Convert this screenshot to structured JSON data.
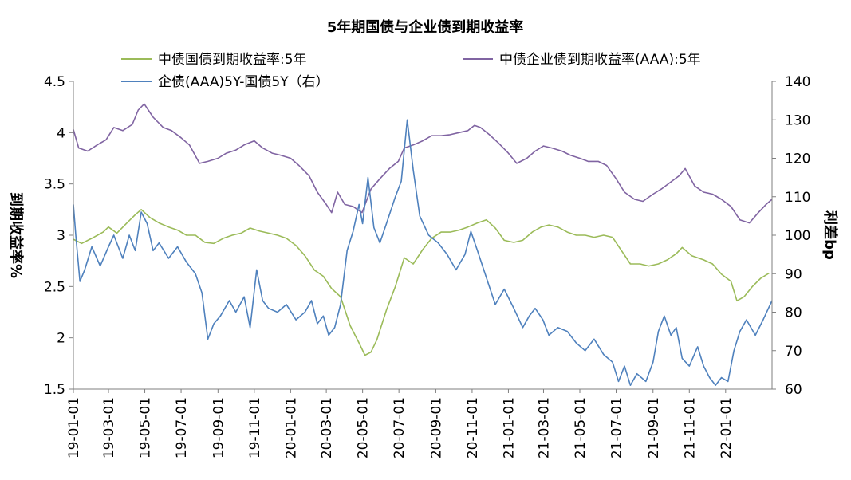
{
  "colors": {
    "gov": "#9BBB59",
    "corp": "#8064A2",
    "spread": "#4F81BD",
    "axis": "#7F7F7F"
  },
  "chart_data": {
    "type": "line",
    "title": "5年期国债与企业债到期收益率",
    "ylabel_left": "到期收益率%",
    "ylabel_right": "利差bp",
    "ylim_left": [
      1.5,
      4.5
    ],
    "yticks_left": [
      "1.5",
      "2",
      "2.5",
      "3",
      "3.5",
      "4",
      "4.5"
    ],
    "ylim_right": [
      60,
      140
    ],
    "yticks_right": [
      "60",
      "70",
      "80",
      "90",
      "100",
      "110",
      "120",
      "130",
      "140"
    ],
    "x_range": [
      "2019-01-01",
      "2022-03-20"
    ],
    "x_ticks": [
      "19-01-01",
      "19-03-01",
      "19-05-01",
      "19-07-01",
      "19-09-01",
      "19-11-01",
      "20-01-01",
      "20-03-01",
      "20-05-01",
      "20-07-01",
      "20-09-01",
      "20-11-01",
      "21-01-01",
      "21-03-01",
      "21-05-01",
      "21-07-01",
      "21-09-01",
      "21-11-01",
      "22-01-01"
    ],
    "legend_position": "top",
    "grid": false,
    "series": [
      {
        "name": "中债国债到期收益率:5年",
        "axis": "left",
        "color": "#9BBB59",
        "points": [
          [
            "2019-01-01",
            2.96
          ],
          [
            "2019-01-15",
            2.92
          ],
          [
            "2019-02-01",
            2.97
          ],
          [
            "2019-02-20",
            3.03
          ],
          [
            "2019-03-01",
            3.08
          ],
          [
            "2019-03-15",
            3.02
          ],
          [
            "2019-04-01",
            3.12
          ],
          [
            "2019-04-15",
            3.2
          ],
          [
            "2019-04-25",
            3.25
          ],
          [
            "2019-05-10",
            3.17
          ],
          [
            "2019-05-25",
            3.12
          ],
          [
            "2019-06-10",
            3.08
          ],
          [
            "2019-06-25",
            3.05
          ],
          [
            "2019-07-10",
            3.0
          ],
          [
            "2019-07-25",
            3.0
          ],
          [
            "2019-08-10",
            2.93
          ],
          [
            "2019-08-25",
            2.92
          ],
          [
            "2019-09-10",
            2.97
          ],
          [
            "2019-09-25",
            3.0
          ],
          [
            "2019-10-10",
            3.02
          ],
          [
            "2019-10-25",
            3.07
          ],
          [
            "2019-11-10",
            3.04
          ],
          [
            "2019-11-25",
            3.02
          ],
          [
            "2019-12-10",
            3.0
          ],
          [
            "2019-12-25",
            2.97
          ],
          [
            "2020-01-10",
            2.9
          ],
          [
            "2020-01-25",
            2.8
          ],
          [
            "2020-02-10",
            2.66
          ],
          [
            "2020-02-25",
            2.6
          ],
          [
            "2020-03-10",
            2.48
          ],
          [
            "2020-03-25",
            2.4
          ],
          [
            "2020-04-10",
            2.12
          ],
          [
            "2020-04-25",
            1.95
          ],
          [
            "2020-05-05",
            1.83
          ],
          [
            "2020-05-15",
            1.86
          ],
          [
            "2020-05-25",
            1.98
          ],
          [
            "2020-06-10",
            2.27
          ],
          [
            "2020-06-25",
            2.5
          ],
          [
            "2020-07-10",
            2.78
          ],
          [
            "2020-07-25",
            2.72
          ],
          [
            "2020-08-10",
            2.86
          ],
          [
            "2020-08-25",
            2.97
          ],
          [
            "2020-09-10",
            3.03
          ],
          [
            "2020-09-25",
            3.03
          ],
          [
            "2020-10-10",
            3.05
          ],
          [
            "2020-10-25",
            3.08
          ],
          [
            "2020-11-10",
            3.12
          ],
          [
            "2020-11-25",
            3.15
          ],
          [
            "2020-12-10",
            3.07
          ],
          [
            "2020-12-25",
            2.95
          ],
          [
            "2021-01-10",
            2.93
          ],
          [
            "2021-01-25",
            2.95
          ],
          [
            "2021-02-10",
            3.03
          ],
          [
            "2021-02-25",
            3.08
          ],
          [
            "2021-03-10",
            3.1
          ],
          [
            "2021-03-25",
            3.08
          ],
          [
            "2021-04-10",
            3.03
          ],
          [
            "2021-04-25",
            3.0
          ],
          [
            "2021-05-10",
            3.0
          ],
          [
            "2021-05-25",
            2.98
          ],
          [
            "2021-06-10",
            3.0
          ],
          [
            "2021-06-25",
            2.98
          ],
          [
            "2021-07-10",
            2.85
          ],
          [
            "2021-07-25",
            2.72
          ],
          [
            "2021-08-10",
            2.72
          ],
          [
            "2021-08-25",
            2.7
          ],
          [
            "2021-09-10",
            2.72
          ],
          [
            "2021-09-25",
            2.76
          ],
          [
            "2021-10-10",
            2.82
          ],
          [
            "2021-10-20",
            2.88
          ],
          [
            "2021-11-05",
            2.8
          ],
          [
            "2021-11-25",
            2.76
          ],
          [
            "2021-12-10",
            2.72
          ],
          [
            "2021-12-25",
            2.62
          ],
          [
            "2022-01-10",
            2.55
          ],
          [
            "2022-01-20",
            2.36
          ],
          [
            "2022-02-01",
            2.4
          ],
          [
            "2022-02-15",
            2.5
          ],
          [
            "2022-03-01",
            2.58
          ],
          [
            "2022-03-15",
            2.63
          ]
        ]
      },
      {
        "name": "中债企业债到期收益率(AAA):5年",
        "axis": "left",
        "color": "#8064A2",
        "points": [
          [
            "2019-01-01",
            4.03
          ],
          [
            "2019-01-10",
            3.85
          ],
          [
            "2019-01-25",
            3.82
          ],
          [
            "2019-02-10",
            3.88
          ],
          [
            "2019-02-25",
            3.93
          ],
          [
            "2019-03-10",
            4.05
          ],
          [
            "2019-03-25",
            4.02
          ],
          [
            "2019-04-10",
            4.08
          ],
          [
            "2019-04-20",
            4.22
          ],
          [
            "2019-04-30",
            4.28
          ],
          [
            "2019-05-15",
            4.15
          ],
          [
            "2019-06-01",
            4.05
          ],
          [
            "2019-06-15",
            4.02
          ],
          [
            "2019-07-01",
            3.95
          ],
          [
            "2019-07-15",
            3.88
          ],
          [
            "2019-08-01",
            3.7
          ],
          [
            "2019-08-15",
            3.72
          ],
          [
            "2019-09-01",
            3.75
          ],
          [
            "2019-09-15",
            3.8
          ],
          [
            "2019-10-01",
            3.83
          ],
          [
            "2019-10-15",
            3.88
          ],
          [
            "2019-11-01",
            3.92
          ],
          [
            "2019-11-15",
            3.85
          ],
          [
            "2019-12-01",
            3.8
          ],
          [
            "2019-12-15",
            3.78
          ],
          [
            "2020-01-01",
            3.75
          ],
          [
            "2020-01-15",
            3.68
          ],
          [
            "2020-02-01",
            3.58
          ],
          [
            "2020-02-15",
            3.42
          ],
          [
            "2020-03-01",
            3.3
          ],
          [
            "2020-03-10",
            3.22
          ],
          [
            "2020-03-20",
            3.42
          ],
          [
            "2020-04-01",
            3.3
          ],
          [
            "2020-04-15",
            3.28
          ],
          [
            "2020-04-30",
            3.22
          ],
          [
            "2020-05-15",
            3.45
          ],
          [
            "2020-05-30",
            3.55
          ],
          [
            "2020-06-15",
            3.65
          ],
          [
            "2020-06-30",
            3.72
          ],
          [
            "2020-07-10",
            3.85
          ],
          [
            "2020-07-25",
            3.88
          ],
          [
            "2020-08-10",
            3.92
          ],
          [
            "2020-08-25",
            3.97
          ],
          [
            "2020-09-10",
            3.97
          ],
          [
            "2020-09-25",
            3.98
          ],
          [
            "2020-10-10",
            4.0
          ],
          [
            "2020-10-25",
            4.02
          ],
          [
            "2020-11-05",
            4.07
          ],
          [
            "2020-11-15",
            4.05
          ],
          [
            "2020-11-30",
            3.98
          ],
          [
            "2020-12-15",
            3.9
          ],
          [
            "2021-01-01",
            3.8
          ],
          [
            "2021-01-15",
            3.7
          ],
          [
            "2021-02-01",
            3.75
          ],
          [
            "2021-02-15",
            3.82
          ],
          [
            "2021-03-01",
            3.87
          ],
          [
            "2021-03-15",
            3.85
          ],
          [
            "2021-04-01",
            3.82
          ],
          [
            "2021-04-15",
            3.78
          ],
          [
            "2021-05-01",
            3.75
          ],
          [
            "2021-05-15",
            3.72
          ],
          [
            "2021-06-01",
            3.72
          ],
          [
            "2021-06-15",
            3.68
          ],
          [
            "2021-07-01",
            3.55
          ],
          [
            "2021-07-15",
            3.42
          ],
          [
            "2021-08-01",
            3.35
          ],
          [
            "2021-08-15",
            3.33
          ],
          [
            "2021-09-01",
            3.4
          ],
          [
            "2021-09-15",
            3.45
          ],
          [
            "2021-10-01",
            3.52
          ],
          [
            "2021-10-15",
            3.58
          ],
          [
            "2021-10-25",
            3.65
          ],
          [
            "2021-11-10",
            3.48
          ],
          [
            "2021-11-25",
            3.42
          ],
          [
            "2021-12-10",
            3.4
          ],
          [
            "2021-12-25",
            3.35
          ],
          [
            "2022-01-10",
            3.28
          ],
          [
            "2022-01-25",
            3.15
          ],
          [
            "2022-02-10",
            3.12
          ],
          [
            "2022-02-25",
            3.22
          ],
          [
            "2022-03-10",
            3.3
          ],
          [
            "2022-03-20",
            3.35
          ]
        ]
      },
      {
        "name": "企债(AAA)5Y-国债5Y（右）",
        "axis": "right",
        "color": "#4F81BD",
        "points": [
          [
            "2019-01-01",
            108
          ],
          [
            "2019-01-05",
            100
          ],
          [
            "2019-01-12",
            88
          ],
          [
            "2019-01-20",
            91
          ],
          [
            "2019-02-01",
            97
          ],
          [
            "2019-02-15",
            92
          ],
          [
            "2019-03-01",
            97
          ],
          [
            "2019-03-10",
            100
          ],
          [
            "2019-03-25",
            94
          ],
          [
            "2019-04-05",
            100
          ],
          [
            "2019-04-15",
            96
          ],
          [
            "2019-04-25",
            106
          ],
          [
            "2019-05-05",
            103
          ],
          [
            "2019-05-15",
            96
          ],
          [
            "2019-05-25",
            98
          ],
          [
            "2019-06-10",
            94
          ],
          [
            "2019-06-25",
            97
          ],
          [
            "2019-07-10",
            93
          ],
          [
            "2019-07-25",
            90
          ],
          [
            "2019-08-05",
            85
          ],
          [
            "2019-08-15",
            73
          ],
          [
            "2019-08-25",
            77
          ],
          [
            "2019-09-05",
            79
          ],
          [
            "2019-09-20",
            83
          ],
          [
            "2019-10-01",
            80
          ],
          [
            "2019-10-15",
            84
          ],
          [
            "2019-10-25",
            76
          ],
          [
            "2019-11-05",
            91
          ],
          [
            "2019-11-15",
            83
          ],
          [
            "2019-11-25",
            81
          ],
          [
            "2019-12-10",
            80
          ],
          [
            "2019-12-25",
            82
          ],
          [
            "2020-01-10",
            78
          ],
          [
            "2020-01-25",
            80
          ],
          [
            "2020-02-05",
            83
          ],
          [
            "2020-02-15",
            77
          ],
          [
            "2020-02-25",
            79
          ],
          [
            "2020-03-05",
            74
          ],
          [
            "2020-03-15",
            76
          ],
          [
            "2020-03-25",
            82
          ],
          [
            "2020-04-05",
            96
          ],
          [
            "2020-04-15",
            101
          ],
          [
            "2020-04-25",
            108
          ],
          [
            "2020-05-01",
            103
          ],
          [
            "2020-05-10",
            115
          ],
          [
            "2020-05-20",
            102
          ],
          [
            "2020-05-30",
            98
          ],
          [
            "2020-06-10",
            103
          ],
          [
            "2020-06-25",
            110
          ],
          [
            "2020-07-05",
            114
          ],
          [
            "2020-07-15",
            130
          ],
          [
            "2020-07-25",
            117
          ],
          [
            "2020-08-05",
            105
          ],
          [
            "2020-08-20",
            100
          ],
          [
            "2020-09-05",
            98
          ],
          [
            "2020-09-20",
            95
          ],
          [
            "2020-10-05",
            91
          ],
          [
            "2020-10-20",
            95
          ],
          [
            "2020-10-30",
            101
          ],
          [
            "2020-11-10",
            96
          ],
          [
            "2020-11-25",
            89
          ],
          [
            "2020-12-10",
            82
          ],
          [
            "2020-12-25",
            86
          ],
          [
            "2021-01-10",
            81
          ],
          [
            "2021-01-25",
            76
          ],
          [
            "2021-02-05",
            79
          ],
          [
            "2021-02-15",
            81
          ],
          [
            "2021-02-28",
            78
          ],
          [
            "2021-03-10",
            74
          ],
          [
            "2021-03-25",
            76
          ],
          [
            "2021-04-10",
            75
          ],
          [
            "2021-04-25",
            72
          ],
          [
            "2021-05-10",
            70
          ],
          [
            "2021-05-25",
            73
          ],
          [
            "2021-06-10",
            69
          ],
          [
            "2021-06-25",
            67
          ],
          [
            "2021-07-05",
            62
          ],
          [
            "2021-07-15",
            66
          ],
          [
            "2021-07-25",
            61
          ],
          [
            "2021-08-05",
            64
          ],
          [
            "2021-08-20",
            62
          ],
          [
            "2021-09-01",
            67
          ],
          [
            "2021-09-10",
            75
          ],
          [
            "2021-09-20",
            79
          ],
          [
            "2021-10-01",
            74
          ],
          [
            "2021-10-10",
            76
          ],
          [
            "2021-10-20",
            68
          ],
          [
            "2021-11-01",
            66
          ],
          [
            "2021-11-15",
            71
          ],
          [
            "2021-11-25",
            66
          ],
          [
            "2021-12-05",
            63
          ],
          [
            "2021-12-15",
            61
          ],
          [
            "2021-12-25",
            63
          ],
          [
            "2022-01-05",
            62
          ],
          [
            "2022-01-15",
            70
          ],
          [
            "2022-01-25",
            75
          ],
          [
            "2022-02-05",
            78
          ],
          [
            "2022-02-20",
            74
          ],
          [
            "2022-03-05",
            78
          ],
          [
            "2022-03-20",
            83
          ]
        ]
      }
    ]
  }
}
